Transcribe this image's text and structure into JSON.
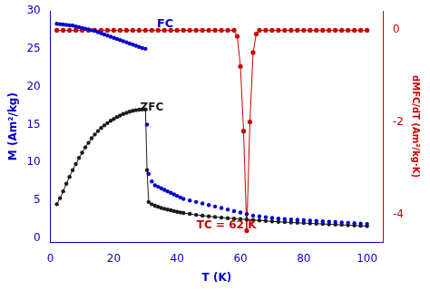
{
  "chart_data": {
    "type": "scatter",
    "xlabel": "T (K)",
    "ylabel": "M (Am²/kg)",
    "y2label": "dMFC/dT (Am²/kg·K)",
    "xlim": [
      0,
      105
    ],
    "xticks": [
      0,
      20,
      40,
      60,
      80,
      100
    ],
    "ylim": [
      -0.5,
      30
    ],
    "yticks": [
      0,
      5,
      10,
      15,
      20,
      25,
      30
    ],
    "y2lim": [
      -4.6,
      0.4
    ],
    "y2ticks": [
      -4,
      -2,
      0
    ],
    "grid": false,
    "series": [
      {
        "color": "#0000CC",
        "marker": "circle",
        "line_style": "none",
        "x": [
          2,
          3,
          4,
          5,
          6,
          7,
          8,
          9,
          10,
          11,
          12,
          13,
          14,
          15,
          16,
          17,
          18,
          19,
          20,
          21,
          22,
          23,
          24,
          25,
          26,
          27,
          28,
          29,
          30,
          30.5,
          31,
          32,
          33,
          34,
          35,
          36,
          37,
          38,
          39,
          40,
          41,
          42,
          44,
          46,
          48,
          50,
          52,
          54,
          56,
          58,
          60,
          62,
          64,
          66,
          68,
          70,
          72,
          74,
          76,
          78,
          80,
          82,
          84,
          86,
          88,
          90,
          92,
          94,
          96,
          98,
          100
        ],
        "values": [
          28.3,
          28.25,
          28.2,
          28.15,
          28.1,
          28.05,
          27.95,
          27.85,
          27.75,
          27.65,
          27.55,
          27.45,
          27.35,
          27.2,
          27.05,
          26.9,
          26.75,
          26.6,
          26.45,
          26.3,
          26.15,
          26.0,
          25.85,
          25.7,
          25.55,
          25.4,
          25.25,
          25.1,
          25.0,
          15.0,
          8.5,
          7.5,
          7.0,
          6.8,
          6.6,
          6.4,
          6.2,
          6.0,
          5.8,
          5.6,
          5.4,
          5.2,
          5.0,
          4.8,
          4.6,
          4.4,
          4.2,
          4.0,
          3.8,
          3.6,
          3.4,
          3.2,
          3.0,
          2.9,
          2.8,
          2.7,
          2.6,
          2.55,
          2.5,
          2.45,
          2.4,
          2.35,
          2.3,
          2.25,
          2.2,
          2.15,
          2.1,
          2.05,
          2.0,
          1.95,
          1.9
        ]
      },
      {
        "color": "#1a1a1a",
        "marker": "circle",
        "line_style": "solid",
        "x": [
          2,
          3,
          4,
          5,
          6,
          7,
          8,
          9,
          10,
          11,
          12,
          13,
          14,
          15,
          16,
          17,
          18,
          19,
          20,
          21,
          22,
          23,
          24,
          25,
          26,
          27,
          28,
          29,
          30,
          30.5,
          31,
          32,
          33,
          34,
          35,
          36,
          37,
          38,
          39,
          40,
          41,
          42,
          44,
          46,
          48,
          50,
          52,
          54,
          56,
          58,
          60,
          62,
          64,
          66,
          68,
          70,
          72,
          74,
          76,
          78,
          80,
          82,
          84,
          86,
          88,
          90,
          92,
          94,
          96,
          98,
          100
        ],
        "values": [
          4.5,
          5.3,
          6.2,
          7.2,
          8.1,
          9.0,
          9.8,
          10.6,
          11.3,
          12.0,
          12.6,
          13.2,
          13.7,
          14.15,
          14.55,
          14.9,
          15.2,
          15.5,
          15.75,
          16.0,
          16.2,
          16.4,
          16.55,
          16.7,
          16.82,
          16.9,
          16.97,
          17.0,
          17.0,
          9.0,
          4.8,
          4.5,
          4.3,
          4.15,
          4.0,
          3.9,
          3.8,
          3.7,
          3.6,
          3.5,
          3.42,
          3.35,
          3.22,
          3.1,
          3.0,
          2.9,
          2.82,
          2.74,
          2.67,
          2.6,
          2.54,
          2.48,
          2.42,
          2.36,
          2.3,
          2.24,
          2.19,
          2.14,
          2.1,
          2.06,
          2.02,
          1.98,
          1.94,
          1.9,
          1.86,
          1.82,
          1.78,
          1.74,
          1.7,
          1.66,
          1.62
        ]
      },
      {
        "color": "#CC0000",
        "marker": "circle",
        "line_style": "solid",
        "axis": "y2",
        "x": [
          2,
          4,
          6,
          8,
          10,
          12,
          14,
          16,
          18,
          20,
          22,
          24,
          26,
          28,
          30,
          32,
          34,
          36,
          38,
          40,
          42,
          44,
          46,
          48,
          50,
          52,
          54,
          56,
          58,
          59,
          60,
          61,
          62,
          63,
          64,
          65,
          66,
          68,
          70,
          72,
          74,
          76,
          78,
          80,
          82,
          84,
          86,
          88,
          90,
          92,
          94,
          96,
          98,
          100
        ],
        "values": [
          -0.02,
          -0.02,
          -0.02,
          -0.02,
          -0.02,
          -0.02,
          -0.02,
          -0.02,
          -0.02,
          -0.02,
          -0.02,
          -0.02,
          -0.02,
          -0.02,
          -0.02,
          -0.02,
          -0.02,
          -0.02,
          -0.02,
          -0.02,
          -0.02,
          -0.02,
          -0.02,
          -0.02,
          -0.02,
          -0.02,
          -0.02,
          -0.02,
          -0.02,
          -0.15,
          -0.8,
          -2.2,
          -4.35,
          -2.0,
          -0.5,
          -0.1,
          -0.02,
          -0.02,
          -0.02,
          -0.02,
          -0.02,
          -0.02,
          -0.02,
          -0.02,
          -0.02,
          -0.02,
          -0.02,
          -0.02,
          -0.02,
          -0.02,
          -0.02,
          -0.02,
          -0.02,
          -0.02
        ]
      }
    ],
    "annotations": [
      {
        "text": "FC",
        "color": "#0000CC"
      },
      {
        "text": "ZFC",
        "color": "#1a1a1a"
      },
      {
        "text": "TC = 62 K",
        "color": "#CC0000"
      }
    ]
  }
}
